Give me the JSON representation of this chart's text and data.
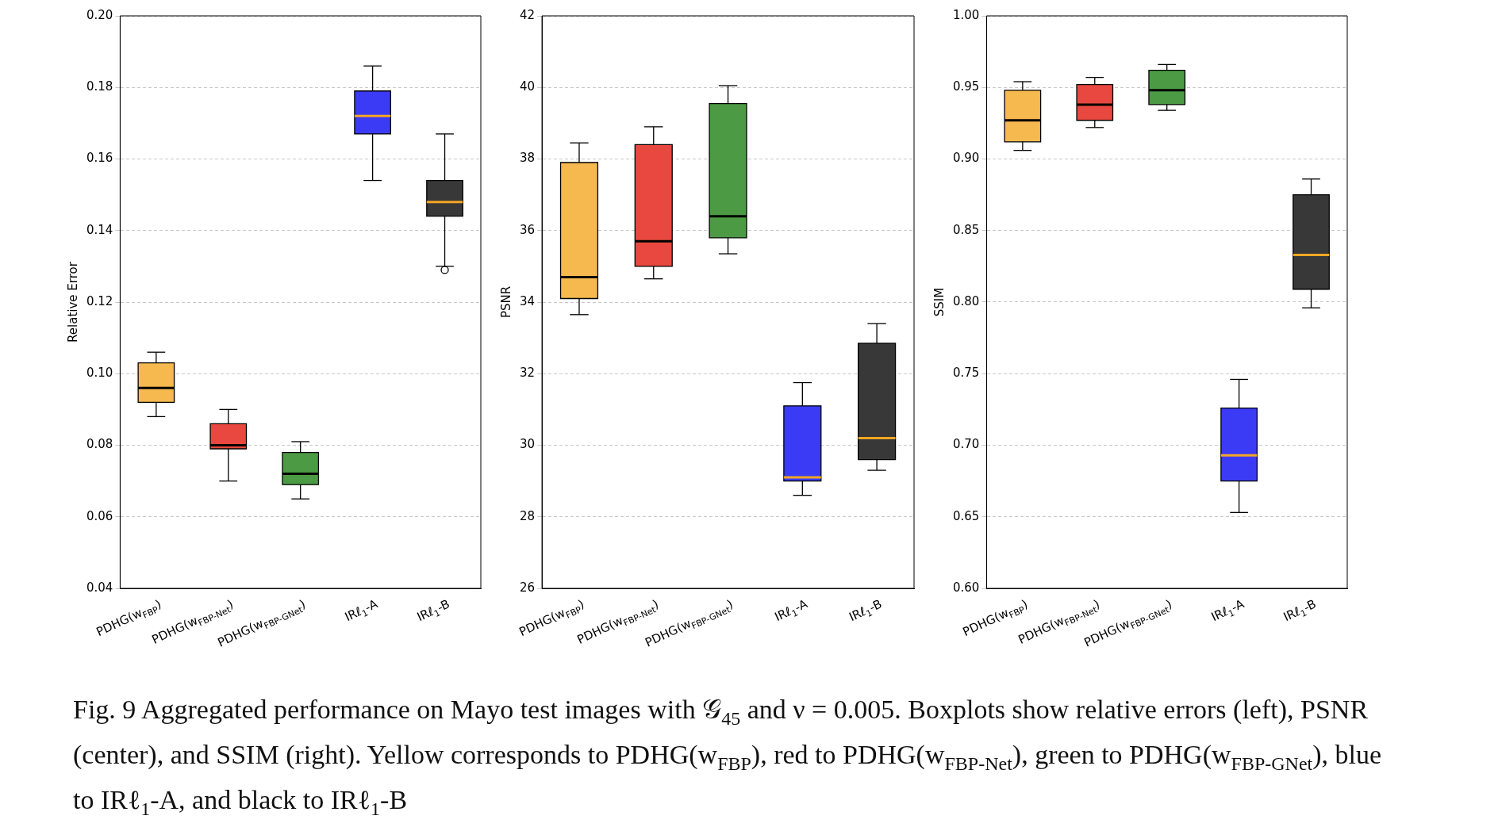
{
  "chart_data": [
    {
      "type": "box",
      "ylabel": "Relative Error",
      "categories": [
        "PDHG(w$_{FBP}$)",
        "PDHG(w$_{FBP-Net}$)",
        "PDHG(w$_{FBP-GNet}$)",
        "IRℓ$_{1}$-A",
        "IRℓ$_{1}$-B"
      ],
      "colors": [
        "#f5b94f",
        "#e8483f",
        "#4d9a45",
        "#3b3bf5",
        "#383838"
      ],
      "boxes": [
        {
          "low": 0.088,
          "q1": 0.092,
          "median": 0.096,
          "q3": 0.103,
          "high": 0.106
        },
        {
          "low": 0.07,
          "q1": 0.079,
          "median": 0.08,
          "q3": 0.086,
          "high": 0.09
        },
        {
          "low": 0.065,
          "q1": 0.069,
          "median": 0.072,
          "q3": 0.078,
          "high": 0.081
        },
        {
          "low": 0.154,
          "q1": 0.167,
          "median": 0.172,
          "q3": 0.179,
          "high": 0.186
        },
        {
          "low": 0.13,
          "q1": 0.144,
          "median": 0.148,
          "q3": 0.154,
          "high": 0.167,
          "outliers": [
            0.129
          ]
        }
      ],
      "ylim": [
        0.04,
        0.2
      ],
      "yticks": [
        0.04,
        0.06,
        0.08,
        {
          "value": 0.1,
          "label": "0.10"
        },
        0.12,
        0.14,
        0.16,
        0.18,
        {
          "value": 0.2,
          "label": "0.20"
        }
      ],
      "grid": "y",
      "annotations": [
        "Fig. 9  Aggregated performance on Mayo test images with 𝒢$_{45}$ and ν = 0.005. Boxplots show relative errors (left), PSNR (center), and SSIM (right). Yellow corresponds to PDHG(w$_{FBP}$), red to PDHG(w$_{FBP-Net}$), green to PDHG(w$_{FBP-GNet}$), blue to IRℓ$_{1}$-A, and black to IRℓ$_{1}$-B"
      ]
    },
    {
      "type": "box",
      "ylabel": "PSNR",
      "categories": [
        "PDHG(w$_{FBP}$)",
        "PDHG(w$_{FBP-Net}$)",
        "PDHG(w$_{FBP-GNet}$)",
        "IRℓ$_{1}$-A",
        "IRℓ$_{1}$-B"
      ],
      "colors": [
        "#f5b94f",
        "#e8483f",
        "#4d9a45",
        "#3b3bf5",
        "#383838"
      ],
      "boxes": [
        {
          "low": 33.65,
          "q1": 34.1,
          "median": 34.7,
          "q3": 37.9,
          "high": 38.45
        },
        {
          "low": 34.65,
          "q1": 35.0,
          "median": 35.7,
          "q3": 38.4,
          "high": 38.9
        },
        {
          "low": 35.35,
          "q1": 35.8,
          "median": 36.4,
          "q3": 39.55,
          "high": 40.05
        },
        {
          "low": 28.6,
          "q1": 29.0,
          "median": 29.1,
          "q3": 31.1,
          "high": 31.75
        },
        {
          "low": 29.3,
          "q1": 29.6,
          "median": 30.2,
          "q3": 32.85,
          "high": 33.4
        }
      ],
      "ylim": [
        26,
        42
      ],
      "yticks": [
        26,
        28,
        30,
        32,
        34,
        36,
        38,
        40,
        42
      ],
      "grid": "y"
    },
    {
      "type": "box",
      "ylabel": "SSIM",
      "categories": [
        "PDHG(w$_{FBP}$)",
        "PDHG(w$_{FBP-Net}$)",
        "PDHG(w$_{FBP-GNet}$)",
        "IRℓ$_{1}$-A",
        "IRℓ$_{1}$-B"
      ],
      "colors": [
        "#f5b94f",
        "#e8483f",
        "#4d9a45",
        "#3b3bf5",
        "#383838"
      ],
      "boxes": [
        {
          "low": 0.906,
          "q1": 0.912,
          "median": 0.927,
          "q3": 0.948,
          "high": 0.954
        },
        {
          "low": 0.922,
          "q1": 0.927,
          "median": 0.938,
          "q3": 0.952,
          "high": 0.957
        },
        {
          "low": 0.934,
          "q1": 0.938,
          "median": 0.948,
          "q3": 0.962,
          "high": 0.966
        },
        {
          "low": 0.653,
          "q1": 0.675,
          "median": 0.693,
          "q3": 0.726,
          "high": 0.746
        },
        {
          "low": 0.796,
          "q1": 0.809,
          "median": 0.833,
          "q3": 0.875,
          "high": 0.886
        }
      ],
      "ylim": [
        0.6,
        1.0
      ],
      "yticks": [
        {
          "value": 0.6,
          "label": "0.60"
        },
        0.65,
        {
          "value": 0.7,
          "label": "0.70"
        },
        0.75,
        {
          "value": 0.8,
          "label": "0.80"
        },
        0.85,
        {
          "value": 0.9,
          "label": "0.90"
        },
        0.95,
        {
          "value": 1.0,
          "label": "1.00"
        }
      ],
      "grid": "y"
    }
  ]
}
